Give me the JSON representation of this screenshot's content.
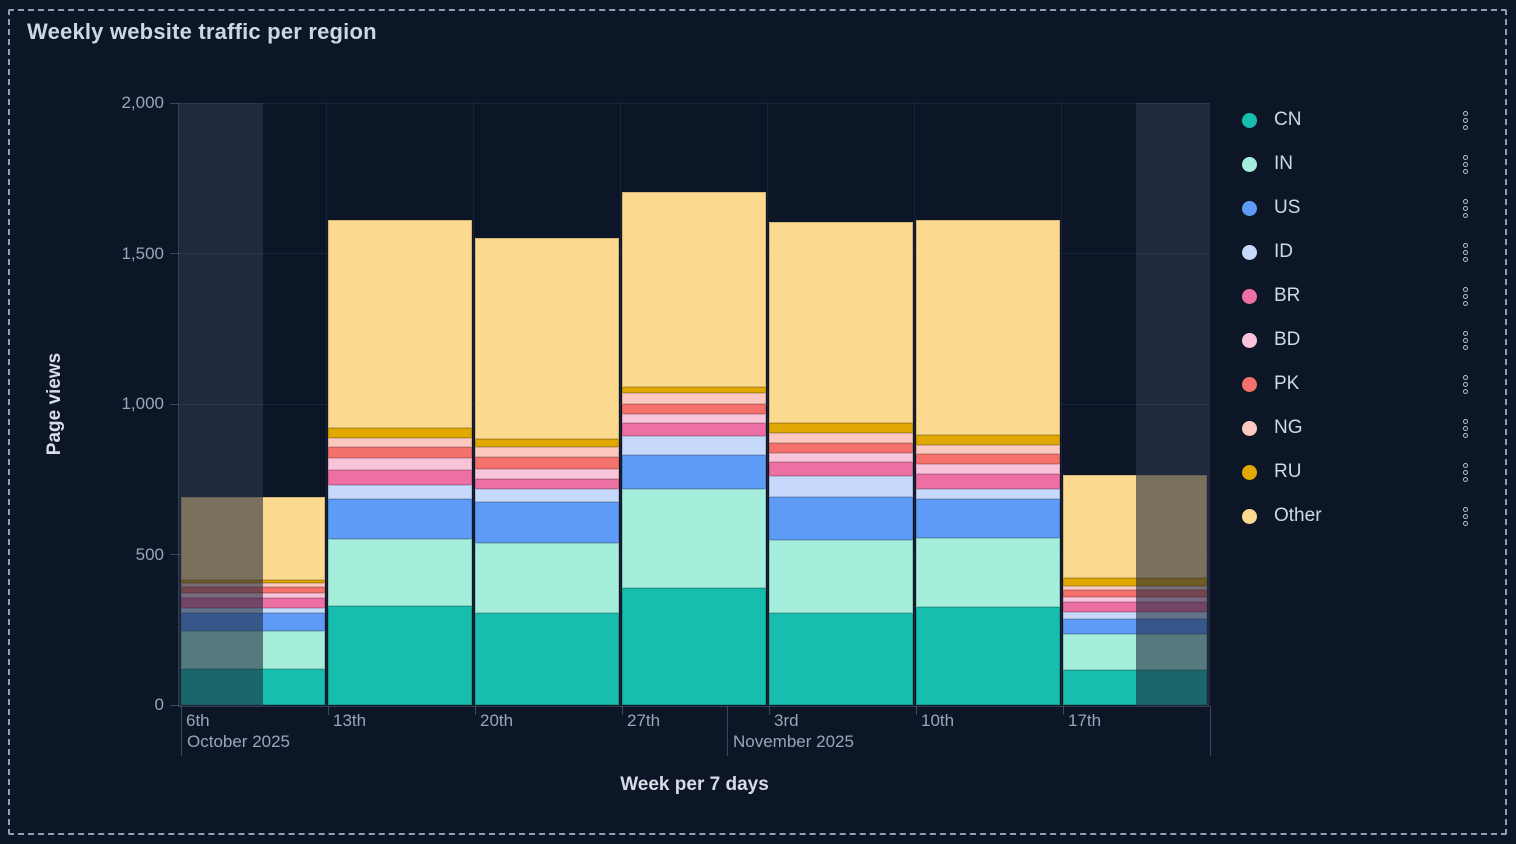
{
  "panel": {
    "title": "Weekly website traffic per region",
    "background": "#0d1626",
    "border_color": "#8fa0b5"
  },
  "chart_data": {
    "type": "bar",
    "stacked": true,
    "title": "Weekly website traffic per region",
    "xlabel": "Week per 7 days",
    "ylabel": "Page views",
    "ylim": [
      0,
      2000
    ],
    "yticks": [
      {
        "value": 0,
        "label": "0"
      },
      {
        "value": 500,
        "label": "500"
      },
      {
        "value": 1000,
        "label": "1,000"
      },
      {
        "value": 1500,
        "label": "1,500"
      },
      {
        "value": 2000,
        "label": "2,000"
      }
    ],
    "categories": [
      "6th",
      "13th",
      "20th",
      "27th",
      "3rd",
      "10th",
      "17th"
    ],
    "months": [
      {
        "label": "October 2025",
        "week_position": 0
      },
      {
        "label": "November 2025",
        "week_position": 3.7143
      }
    ],
    "series": [
      {
        "name": "CN",
        "color": "#17beae",
        "values": [
          120,
          330,
          305,
          390,
          307,
          325,
          116
        ]
      },
      {
        "name": "IN",
        "color": "#a5eedb",
        "values": [
          125,
          220,
          232,
          326,
          241,
          229,
          119
        ]
      },
      {
        "name": "US",
        "color": "#5d9bf7",
        "values": [
          60,
          133,
          139,
          114,
          144,
          130,
          50
        ]
      },
      {
        "name": "ID",
        "color": "#c6d9fb",
        "values": [
          16,
          48,
          41,
          63,
          69,
          33,
          25
        ]
      },
      {
        "name": "BR",
        "color": "#ee6fa4",
        "values": [
          34,
          50,
          33,
          44,
          47,
          51,
          33
        ]
      },
      {
        "name": "BD",
        "color": "#f9c3da",
        "values": [
          18,
          39,
          33,
          31,
          30,
          32,
          15
        ]
      },
      {
        "name": "PK",
        "color": "#f5716c",
        "values": [
          18,
          37,
          40,
          31,
          31,
          34,
          24
        ]
      },
      {
        "name": "NG",
        "color": "#fcc9c0",
        "values": [
          13,
          31,
          35,
          36,
          34,
          31,
          14
        ]
      },
      {
        "name": "RU",
        "color": "#e0a800",
        "values": [
          12,
          33,
          26,
          22,
          35,
          31,
          25
        ]
      },
      {
        "name": "Other",
        "color": "#fbd98e",
        "values": [
          274,
          689,
          666,
          648,
          668,
          714,
          344
        ]
      }
    ],
    "totals_per_week": [
      690,
      1610,
      1550,
      1705,
      1606,
      1610,
      765
    ],
    "grid": true,
    "legend_position": "right",
    "out_of_range_mask": {
      "first_bar_covered_fraction": 0.57,
      "last_bar_covered_fraction": 0.49
    }
  },
  "legend": {
    "menu_icon": "kebab-vertical"
  }
}
